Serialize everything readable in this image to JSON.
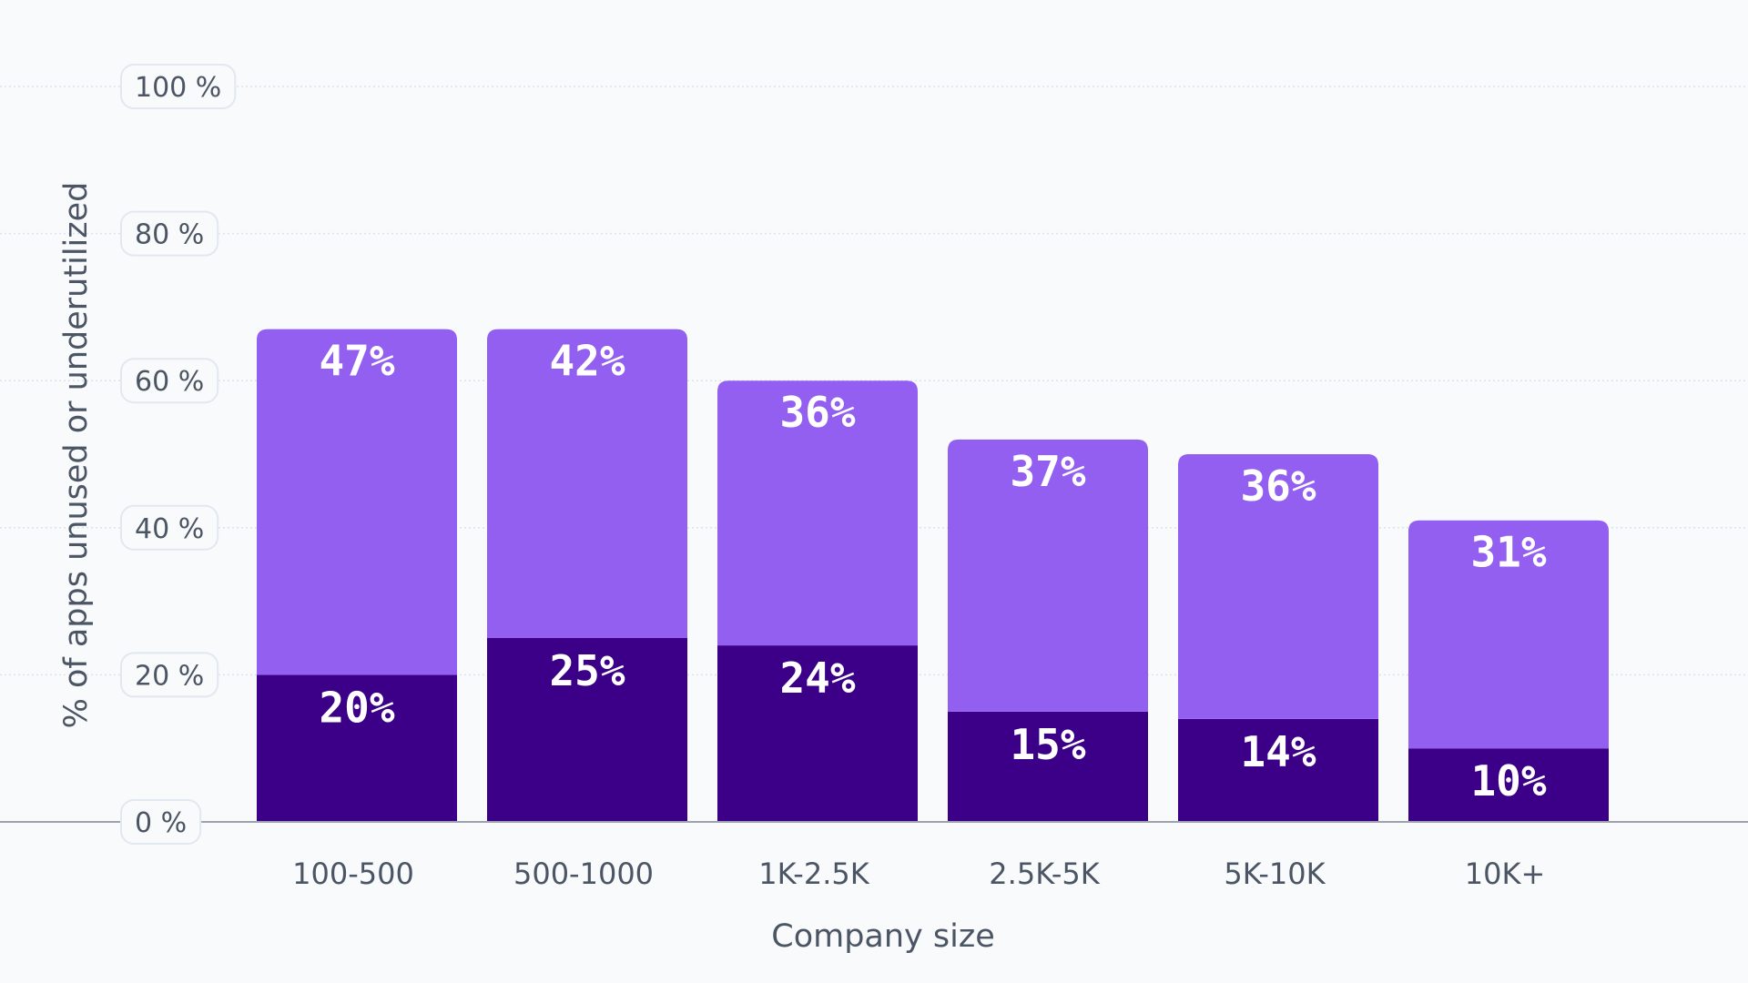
{
  "chart_data": {
    "type": "bar",
    "stacked": true,
    "categories": [
      "100-500",
      "500-1000",
      "1K-2.5K",
      "2.5K-5K",
      "5K-10K",
      "10K+"
    ],
    "series": [
      {
        "values": [
          20,
          25,
          24,
          15,
          14,
          10
        ],
        "labels": [
          "20%",
          "25%",
          "24%",
          "15%",
          "14%",
          "10%"
        ],
        "color": "#3b0087"
      },
      {
        "values": [
          47,
          42,
          36,
          37,
          36,
          31
        ],
        "labels": [
          "47%",
          "42%",
          "36%",
          "37%",
          "36%",
          "31%"
        ],
        "color": "#935ff0"
      }
    ],
    "xlabel": "Company size",
    "ylabel": "% of apps unused or underutilized",
    "ylim": [
      0,
      100
    ],
    "yticks": [
      0,
      20,
      40,
      60,
      80,
      100
    ],
    "ytick_labels": [
      "0 %",
      "20 %",
      "40 %",
      "60 %",
      "80 %",
      "100 %"
    ],
    "grid": true,
    "legend": "none",
    "colors": {
      "background": "#f8fafc",
      "gridline": "#dde3ec",
      "baseline": "#9ca3af",
      "text": "#4b5563"
    }
  }
}
